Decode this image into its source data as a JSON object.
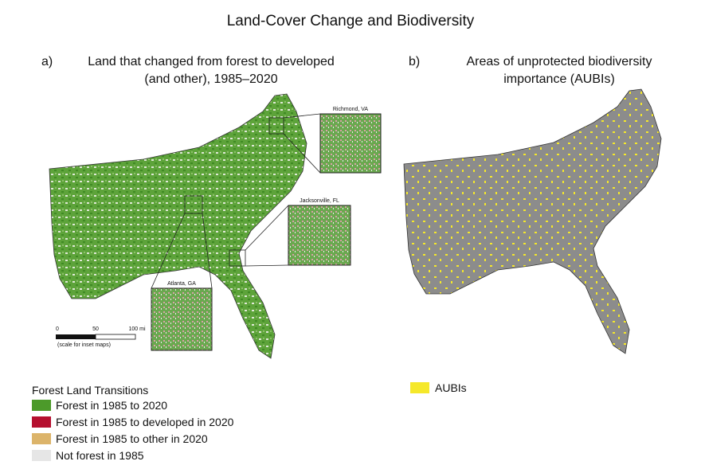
{
  "title": "Land-Cover Change and Biodiversity",
  "panel_a": {
    "letter": "a)",
    "title_lines": [
      "Land that changed from forest to developed",
      "(and other), 1985–2020"
    ],
    "insets": [
      "Richmond, VA",
      "Jacksonville, FL",
      "Atlanta, GA"
    ],
    "scale": {
      "labels": [
        "0",
        "50",
        "100 mi"
      ],
      "note": "(scale for inset maps)"
    },
    "legend": {
      "title": "Forest Land Transitions",
      "items": [
        {
          "label": "Forest in 1985 to 2020",
          "color": "#4c9a2a"
        },
        {
          "label": "Forest in 1985 to developed in 2020",
          "color": "#b5102f"
        },
        {
          "label": "Forest in 1985 to other in 2020",
          "color": "#dcb46a"
        },
        {
          "label": "Not forest in 1985",
          "color": "#e6e6e6"
        }
      ]
    }
  },
  "panel_b": {
    "letter": "b)",
    "title_lines": [
      "Areas of unprotected biodiversity",
      "importance (AUBIs)"
    ],
    "legend": {
      "items": [
        {
          "label": "AUBIs",
          "color": "#f5e82a"
        }
      ]
    }
  }
}
